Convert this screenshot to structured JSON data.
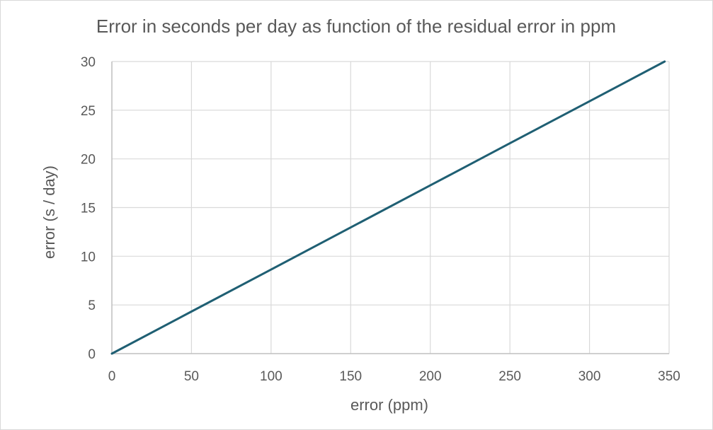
{
  "chart_data": {
    "type": "line",
    "title": "Error in seconds per day as function of the residual error in ppm",
    "xlabel": "error (ppm)",
    "ylabel": "error (s / day)",
    "xlim": [
      0,
      350
    ],
    "ylim": [
      0,
      30
    ],
    "x_ticks": [
      0,
      50,
      100,
      150,
      200,
      250,
      300,
      350
    ],
    "y_ticks": [
      0,
      5,
      10,
      15,
      20,
      25,
      30
    ],
    "grid": true,
    "legend": "none",
    "series": [
      {
        "color": "#1f5f73",
        "x": [
          0,
          50,
          100,
          150,
          200,
          250,
          300,
          347.2
        ],
        "y": [
          0,
          4.32,
          8.64,
          12.96,
          17.28,
          21.6,
          25.92,
          30.0
        ]
      }
    ]
  },
  "colors": {
    "line": "#1f5f73",
    "grid": "#d9d9d9",
    "axis": "#bfbfbf",
    "text": "#595959"
  }
}
